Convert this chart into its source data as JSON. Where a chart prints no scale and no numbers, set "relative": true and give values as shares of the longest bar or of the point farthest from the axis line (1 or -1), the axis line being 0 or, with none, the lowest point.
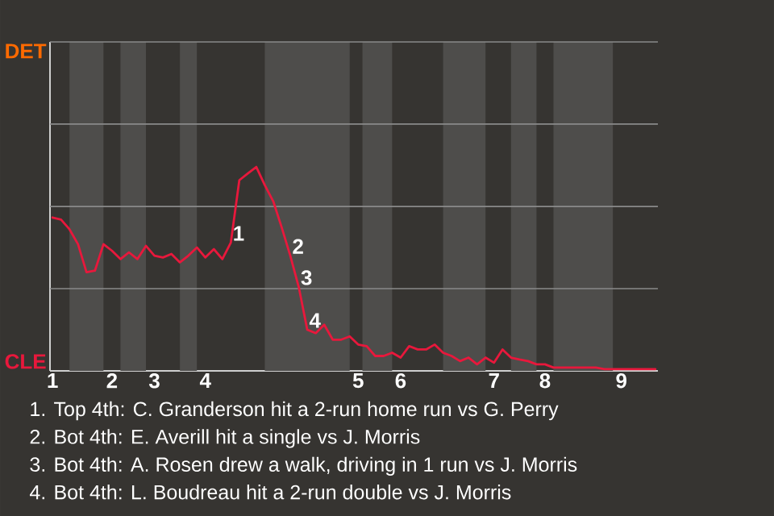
{
  "chart_data": {
    "type": "line",
    "categories": [
      "1",
      null,
      null,
      null,
      null,
      null,
      null,
      "2",
      null,
      null,
      null,
      null,
      "3",
      null,
      null,
      null,
      null,
      null,
      "4",
      null,
      null,
      null,
      null,
      null,
      null,
      null,
      null,
      null,
      null,
      null,
      null,
      null,
      null,
      null,
      null,
      null,
      "5",
      null,
      null,
      null,
      null,
      "6",
      null,
      null,
      null,
      null,
      null,
      null,
      null,
      null,
      null,
      null,
      "7",
      null,
      null,
      null,
      null,
      null,
      "8",
      null,
      null,
      null,
      null,
      null,
      null,
      null,
      null,
      "9",
      null,
      null,
      null,
      null
    ],
    "relative": true,
    "ref_lines": [
      {
        "axis": "y",
        "value": 0.403,
        "color": "#8a8a8a"
      },
      {
        "axis": "y",
        "value": 0.806,
        "color": "#8a8a8a"
      },
      {
        "axis": "y",
        "value": 1.21,
        "color": "#8a8a8a"
      },
      {
        "axis": "y",
        "value": 1.613,
        "color": "#8a8a8a"
      }
    ],
    "marker": "none",
    "series": [
      {
        "color": "#e8183c",
        "values": [
          0.752,
          0.742,
          0.694,
          0.621,
          0.484,
          0.492,
          0.621,
          0.589,
          0.548,
          0.581,
          0.548,
          0.613,
          0.565,
          0.556,
          0.573,
          0.532,
          0.565,
          0.605,
          0.556,
          0.597,
          0.548,
          0.629,
          0.935,
          0.968,
          1,
          0.911,
          0.831,
          0.702,
          0.565,
          0.411,
          0.202,
          0.185,
          0.226,
          0.153,
          0.153,
          0.169,
          0.129,
          0.121,
          0.073,
          0.073,
          0.089,
          0.065,
          0.121,
          0.105,
          0.105,
          0.129,
          0.089,
          0.073,
          0.048,
          0.065,
          0.032,
          0.065,
          0.04,
          0.105,
          0.065,
          0.056,
          0.048,
          0.032,
          0.032,
          0.016,
          0.016,
          0.016,
          0.016,
          0.016,
          0.016,
          0.008,
          0.008,
          0.008,
          0.008,
          0.008,
          0.008,
          0.008
        ]
      }
    ],
    "annotations": [
      "DET",
      "CLE",
      "1",
      "2",
      "3",
      "4",
      "1. Top 4th: C. Granderson hit a 2-run home run vs G. Perry",
      "2. Bot 4th: E. Averill hit a single vs J. Morris",
      "3. Bot 4th: A. Rosen drew a walk, driving in 1 run vs J. Morris",
      "4. Bot 4th: L. Boudreau hit a 2-run double vs J. Morris"
    ]
  }
}
